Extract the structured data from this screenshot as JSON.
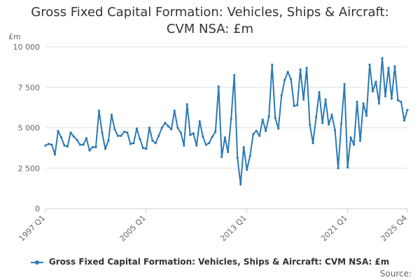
{
  "title_line1": "Gross Fixed Capital Formation: Vehicles, Ships & Aircraft:",
  "title_line2": "CVM NSA: £m",
  "source_label": "Source:",
  "colors": {
    "series": "#2b7ab5",
    "grid": "#e0e0e0",
    "axis": "#cccccc",
    "text": "#666666"
  },
  "chart_data": {
    "type": "line",
    "title": "Gross Fixed Capital Formation: Vehicles, Ships & Aircraft: CVM NSA: £m",
    "ylabel": "£m",
    "xlabel": "",
    "ylim": [
      0,
      10000
    ],
    "y_ticks": [
      0,
      2500,
      5000,
      7500,
      10000
    ],
    "y_tick_labels": [
      "0",
      "2 500",
      "5 000",
      "7 500",
      "10 000"
    ],
    "x_tick_labels": [
      "1997 Q1",
      "2005 Q1",
      "2013 Q1",
      "2021 Q1",
      "2025 Q4"
    ],
    "x_tick_index": [
      0,
      32,
      64,
      96,
      115
    ],
    "grid": true,
    "legend_position": "bottom",
    "start_period": "1997 Q1",
    "end_period": "2025 Q4",
    "series": [
      {
        "name": "Gross Fixed Capital Formation: Vehicles, Ships & Aircraft: CVM NSA: £m",
        "values": [
          3900,
          4000,
          3950,
          3350,
          4800,
          4400,
          3900,
          3850,
          4700,
          4450,
          4250,
          3950,
          3950,
          4350,
          3600,
          3800,
          3800,
          6050,
          4700,
          3700,
          4200,
          5800,
          4900,
          4500,
          4500,
          4750,
          4700,
          4000,
          4050,
          4950,
          4300,
          3750,
          3700,
          5000,
          4200,
          4050,
          4500,
          5000,
          5300,
          5100,
          4900,
          6050,
          5000,
          4700,
          3900,
          6450,
          4550,
          4650,
          3900,
          5400,
          4450,
          3950,
          4050,
          4450,
          4750,
          7550,
          3200,
          4400,
          3500,
          5550,
          8250,
          3150,
          1500,
          3800,
          2400,
          3250,
          4600,
          4800,
          4500,
          5500,
          4800,
          5700,
          8900,
          5600,
          4950,
          7000,
          7950,
          8450,
          8000,
          6350,
          6400,
          8600,
          6750,
          8700,
          5200,
          4050,
          5650,
          7200,
          5300,
          6750,
          5200,
          5800,
          4850,
          2500,
          5250,
          7700,
          2550,
          4400,
          3950,
          6600,
          4200,
          6500,
          5750,
          8900,
          7250,
          7850,
          6500,
          9300,
          6950,
          8700,
          6800,
          8800,
          6700,
          6600,
          5450,
          6100
        ]
      }
    ]
  }
}
